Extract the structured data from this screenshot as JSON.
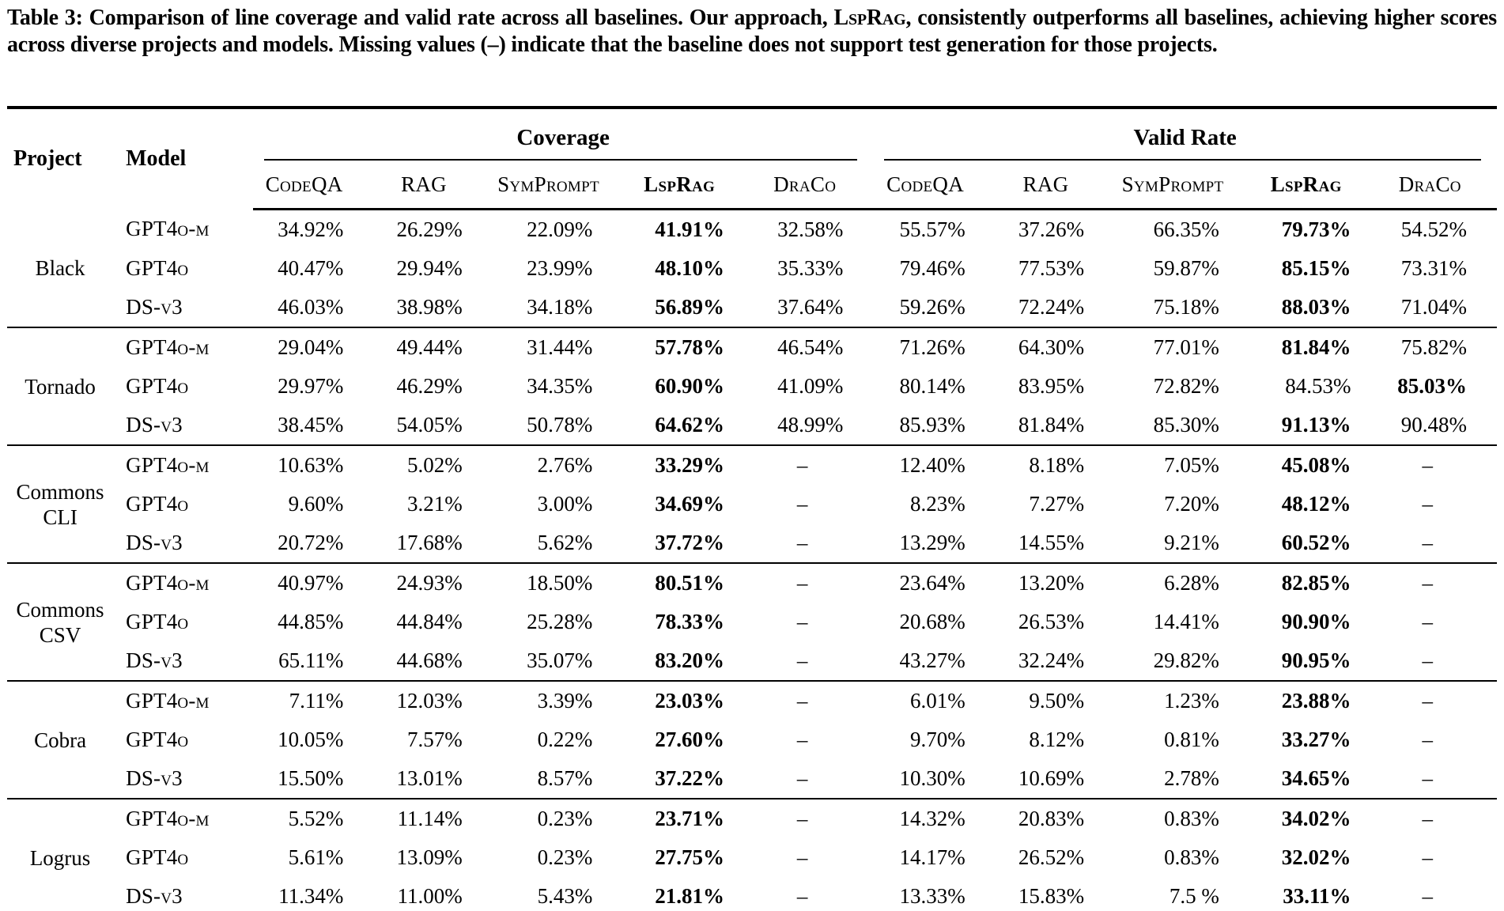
{
  "caption": {
    "prefix": "Table 3: Comparison of line coverage and valid rate across all baselines. Our approach, ",
    "approach": "LspRag",
    "suffix": ", consistently outperforms all baselines, achieving higher scores across diverse projects and models. Missing values (–) indicate that the baseline does not support test generation for those projects."
  },
  "table": {
    "corner_headers": [
      "Project",
      "Model"
    ],
    "group_headers": [
      "Coverage",
      "Valid Rate"
    ],
    "sub_headers": [
      "CodeQA",
      "RAG",
      "SymPrompt",
      "LspRag",
      "DraCo"
    ],
    "missing_marker": "–",
    "projects": [
      {
        "name": "Black",
        "rows": [
          {
            "model": "GPT4o-m",
            "coverage": [
              "34.92%",
              "26.29%",
              "22.09%",
              "41.91%",
              "32.58%"
            ],
            "valid": [
              "55.57%",
              "37.26%",
              "66.35%",
              "79.73%",
              "54.52%"
            ],
            "bold_cov": 3,
            "bold_val": 3
          },
          {
            "model": "GPT4o",
            "coverage": [
              "40.47%",
              "29.94%",
              "23.99%",
              "48.10%",
              "35.33%"
            ],
            "valid": [
              "79.46%",
              "77.53%",
              "59.87%",
              "85.15%",
              "73.31%"
            ],
            "bold_cov": 3,
            "bold_val": 3
          },
          {
            "model": "DS-v3",
            "coverage": [
              "46.03%",
              "38.98%",
              "34.18%",
              "56.89%",
              "37.64%"
            ],
            "valid": [
              "59.26%",
              "72.24%",
              "75.18%",
              "88.03%",
              "71.04%"
            ],
            "bold_cov": 3,
            "bold_val": 3
          }
        ]
      },
      {
        "name": "Tornado",
        "rows": [
          {
            "model": "GPT4o-m",
            "coverage": [
              "29.04%",
              "49.44%",
              "31.44%",
              "57.78%",
              "46.54%"
            ],
            "valid": [
              "71.26%",
              "64.30%",
              "77.01%",
              "81.84%",
              "75.82%"
            ],
            "bold_cov": 3,
            "bold_val": 3
          },
          {
            "model": "GPT4o",
            "coverage": [
              "29.97%",
              "46.29%",
              "34.35%",
              "60.90%",
              "41.09%"
            ],
            "valid": [
              "80.14%",
              "83.95%",
              "72.82%",
              "84.53%",
              "85.03%"
            ],
            "bold_cov": 3,
            "bold_val": 4
          },
          {
            "model": "DS-v3",
            "coverage": [
              "38.45%",
              "54.05%",
              "50.78%",
              "64.62%",
              "48.99%"
            ],
            "valid": [
              "85.93%",
              "81.84%",
              "85.30%",
              "91.13%",
              "90.48%"
            ],
            "bold_cov": 3,
            "bold_val": 3
          }
        ]
      },
      {
        "name": "Commons CLI",
        "rows": [
          {
            "model": "GPT4o-m",
            "coverage": [
              "10.63%",
              "5.02%",
              "2.76%",
              "33.29%",
              "–"
            ],
            "valid": [
              "12.40%",
              "8.18%",
              "7.05%",
              "45.08%",
              "–"
            ],
            "bold_cov": 3,
            "bold_val": 3
          },
          {
            "model": "GPT4o",
            "coverage": [
              "9.60%",
              "3.21%",
              "3.00%",
              "34.69%",
              "–"
            ],
            "valid": [
              "8.23%",
              "7.27%",
              "7.20%",
              "48.12%",
              "–"
            ],
            "bold_cov": 3,
            "bold_val": 3
          },
          {
            "model": "DS-v3",
            "coverage": [
              "20.72%",
              "17.68%",
              "5.62%",
              "37.72%",
              "–"
            ],
            "valid": [
              "13.29%",
              "14.55%",
              "9.21%",
              "60.52%",
              "–"
            ],
            "bold_cov": 3,
            "bold_val": 3
          }
        ]
      },
      {
        "name": "Commons CSV",
        "rows": [
          {
            "model": "GPT4o-m",
            "coverage": [
              "40.97%",
              "24.93%",
              "18.50%",
              "80.51%",
              "–"
            ],
            "valid": [
              "23.64%",
              "13.20%",
              "6.28%",
              "82.85%",
              "–"
            ],
            "bold_cov": 3,
            "bold_val": 3
          },
          {
            "model": "GPT4o",
            "coverage": [
              "44.85%",
              "44.84%",
              "25.28%",
              "78.33%",
              "–"
            ],
            "valid": [
              "20.68%",
              "26.53%",
              "14.41%",
              "90.90%",
              "–"
            ],
            "bold_cov": 3,
            "bold_val": 3
          },
          {
            "model": "DS-v3",
            "coverage": [
              "65.11%",
              "44.68%",
              "35.07%",
              "83.20%",
              "–"
            ],
            "valid": [
              "43.27%",
              "32.24%",
              "29.82%",
              "90.95%",
              "–"
            ],
            "bold_cov": 3,
            "bold_val": 3
          }
        ]
      },
      {
        "name": "Cobra",
        "rows": [
          {
            "model": "GPT4o-m",
            "coverage": [
              "7.11%",
              "12.03%",
              "3.39%",
              "23.03%",
              "–"
            ],
            "valid": [
              "6.01%",
              "9.50%",
              "1.23%",
              "23.88%",
              "–"
            ],
            "bold_cov": 3,
            "bold_val": 3
          },
          {
            "model": "GPT4o",
            "coverage": [
              "10.05%",
              "7.57%",
              "0.22%",
              "27.60%",
              "–"
            ],
            "valid": [
              "9.70%",
              "8.12%",
              "0.81%",
              "33.27%",
              "–"
            ],
            "bold_cov": 3,
            "bold_val": 3
          },
          {
            "model": "DS-v3",
            "coverage": [
              "15.50%",
              "13.01%",
              "8.57%",
              "37.22%",
              "–"
            ],
            "valid": [
              "10.30%",
              "10.69%",
              "2.78%",
              "34.65%",
              "–"
            ],
            "bold_cov": 3,
            "bold_val": 3
          }
        ]
      },
      {
        "name": "Logrus",
        "rows": [
          {
            "model": "GPT4o-m",
            "coverage": [
              "5.52%",
              "11.14%",
              "0.23%",
              "23.71%",
              "–"
            ],
            "valid": [
              "14.32%",
              "20.83%",
              "0.83%",
              "34.02%",
              "–"
            ],
            "bold_cov": 3,
            "bold_val": 3
          },
          {
            "model": "GPT4o",
            "coverage": [
              "5.61%",
              "13.09%",
              "0.23%",
              "27.75%",
              "–"
            ],
            "valid": [
              "14.17%",
              "26.52%",
              "0.83%",
              "32.02%",
              "–"
            ],
            "bold_cov": 3,
            "bold_val": 3
          },
          {
            "model": "DS-v3",
            "coverage": [
              "11.34%",
              "11.00%",
              "5.43%",
              "21.81%",
              "–"
            ],
            "valid": [
              "13.33%",
              "15.83%",
              "7.5 %",
              "33.11%",
              "–"
            ],
            "bold_cov": 3,
            "bold_val": 3
          }
        ]
      }
    ]
  }
}
